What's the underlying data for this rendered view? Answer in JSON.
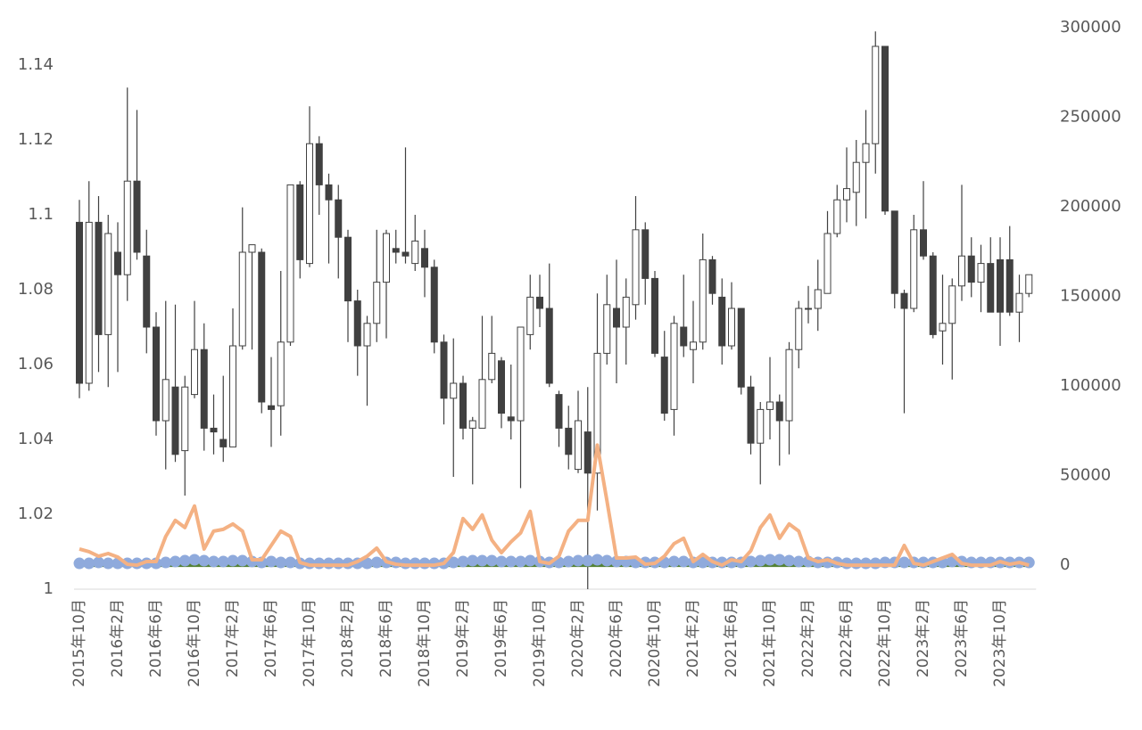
{
  "chart_data": {
    "type": "candlestick",
    "categories": [
      "2015年10月",
      null,
      null,
      null,
      "2016年2月",
      null,
      null,
      null,
      "2016年6月",
      null,
      null,
      null,
      "2016年10月",
      null,
      null,
      null,
      "2017年2月",
      null,
      null,
      null,
      "2017年6月",
      null,
      null,
      null,
      "2017年10月",
      null,
      null,
      null,
      "2018年2月",
      null,
      null,
      null,
      "2018年6月",
      null,
      null,
      null,
      "2018年10月",
      null,
      null,
      null,
      "2019年2月",
      null,
      null,
      null,
      "2019年6月",
      null,
      null,
      null,
      "2019年10月",
      null,
      null,
      null,
      "2020年2月",
      null,
      null,
      null,
      "2020年6月",
      null,
      null,
      null,
      "2020年10月",
      null,
      null,
      null,
      "2021年2月",
      null,
      null,
      null,
      "2021年6月",
      null,
      null,
      null,
      "2021年10月",
      null,
      null,
      null,
      "2022年2月",
      null,
      null,
      null,
      "2022年6月",
      null,
      null,
      null,
      "2022年10月",
      null,
      null,
      null,
      "2023年2月",
      null,
      null,
      null,
      "2023年6月",
      null,
      null,
      null,
      "2023年10月",
      null,
      null,
      null
    ],
    "open": [
      1.098,
      1.055,
      1.098,
      1.068,
      1.09,
      1.084,
      1.109,
      1.089,
      1.07,
      1.045,
      1.054,
      1.037,
      1.052,
      1.064,
      1.043,
      1.04,
      1.038,
      1.065,
      1.09,
      1.09,
      1.049,
      1.049,
      1.066,
      1.108,
      1.087,
      1.119,
      1.108,
      1.104,
      1.094,
      1.077,
      1.065,
      1.071,
      1.082,
      1.091,
      1.09,
      1.087,
      1.091,
      1.086,
      1.066,
      1.051,
      1.055,
      1.043,
      1.043,
      1.056,
      1.061,
      1.046,
      1.045,
      1.068,
      1.078,
      1.075,
      1.052,
      1.043,
      1.032,
      1.042,
      1.031,
      1.063,
      1.075,
      1.07,
      1.076,
      1.096,
      1.083,
      1.062,
      1.048,
      1.07,
      1.064,
      1.066,
      1.088,
      1.078,
      1.065,
      1.075,
      1.054,
      1.039,
      1.048,
      1.05,
      1.045,
      1.064,
      1.075,
      1.075,
      1.079,
      1.095,
      1.104,
      1.106,
      1.114,
      1.119,
      1.145,
      1.101,
      1.079,
      1.075,
      1.096,
      1.089,
      1.069,
      1.071,
      1.081,
      1.089,
      1.082,
      1.087,
      1.088,
      1.088,
      1.074,
      1.079
    ],
    "high": [
      1.104,
      1.109,
      1.105,
      1.1,
      1.098,
      1.134,
      1.128,
      1.096,
      1.074,
      1.077,
      1.076,
      1.057,
      1.077,
      1.071,
      1.052,
      1.057,
      1.075,
      1.102,
      1.092,
      1.091,
      1.062,
      1.085,
      1.108,
      1.109,
      1.129,
      1.121,
      1.111,
      1.108,
      1.096,
      1.08,
      1.073,
      1.096,
      1.096,
      1.096,
      1.118,
      1.1,
      1.096,
      1.088,
      1.068,
      1.067,
      1.057,
      1.046,
      1.073,
      1.073,
      1.062,
      1.06,
      1.07,
      1.084,
      1.084,
      1.087,
      1.053,
      1.049,
      1.053,
      1.054,
      1.079,
      1.084,
      1.088,
      1.083,
      1.105,
      1.098,
      1.085,
      1.069,
      1.073,
      1.084,
      1.077,
      1.095,
      1.089,
      1.083,
      1.082,
      1.075,
      1.057,
      1.05,
      1.062,
      1.052,
      1.066,
      1.077,
      1.081,
      1.088,
      1.101,
      1.108,
      1.118,
      1.12,
      1.128,
      1.149,
      1.145,
      1.101,
      1.08,
      1.1,
      1.109,
      1.09,
      1.084,
      1.083,
      1.108,
      1.094,
      1.092,
      1.094,
      1.094,
      1.097,
      1.084,
      1.084
    ],
    "low": [
      1.051,
      1.053,
      1.058,
      1.054,
      1.058,
      1.077,
      1.088,
      1.063,
      1.041,
      1.032,
      1.034,
      1.025,
      1.051,
      1.037,
      1.036,
      1.034,
      1.038,
      1.064,
      1.064,
      1.047,
      1.038,
      1.041,
      1.065,
      1.083,
      1.086,
      1.1,
      1.087,
      1.083,
      1.066,
      1.057,
      1.049,
      1.066,
      1.067,
      1.087,
      1.087,
      1.085,
      1.078,
      1.063,
      1.044,
      1.03,
      1.04,
      1.028,
      1.043,
      1.055,
      1.043,
      1.04,
      1.027,
      1.064,
      1.07,
      1.054,
      1.038,
      1.032,
      1.031,
      1.0,
      1.021,
      1.06,
      1.055,
      1.06,
      1.072,
      1.076,
      1.062,
      1.045,
      1.041,
      1.062,
      1.055,
      1.064,
      1.076,
      1.06,
      1.064,
      1.052,
      1.036,
      1.028,
      1.04,
      1.033,
      1.036,
      1.059,
      1.071,
      1.069,
      1.079,
      1.094,
      1.098,
      1.097,
      1.099,
      1.111,
      1.1,
      1.075,
      1.047,
      1.074,
      1.088,
      1.067,
      1.06,
      1.056,
      1.077,
      1.078,
      1.074,
      1.074,
      1.065,
      1.073,
      1.066,
      1.078
    ],
    "close": [
      1.055,
      1.098,
      1.068,
      1.095,
      1.084,
      1.109,
      1.09,
      1.07,
      1.045,
      1.056,
      1.036,
      1.054,
      1.064,
      1.043,
      1.042,
      1.038,
      1.065,
      1.09,
      1.092,
      1.05,
      1.048,
      1.066,
      1.108,
      1.088,
      1.119,
      1.108,
      1.104,
      1.094,
      1.077,
      1.065,
      1.071,
      1.082,
      1.095,
      1.09,
      1.089,
      1.093,
      1.086,
      1.066,
      1.051,
      1.055,
      1.043,
      1.045,
      1.056,
      1.063,
      1.047,
      1.045,
      1.07,
      1.078,
      1.075,
      1.055,
      1.043,
      1.036,
      1.045,
      1.031,
      1.063,
      1.076,
      1.07,
      1.078,
      1.096,
      1.083,
      1.063,
      1.047,
      1.071,
      1.065,
      1.066,
      1.088,
      1.079,
      1.065,
      1.075,
      1.054,
      1.039,
      1.048,
      1.05,
      1.045,
      1.064,
      1.075,
      1.075,
      1.08,
      1.095,
      1.104,
      1.107,
      1.114,
      1.119,
      1.145,
      1.101,
      1.079,
      1.075,
      1.096,
      1.089,
      1.068,
      1.071,
      1.081,
      1.089,
      1.082,
      1.087,
      1.074,
      1.074,
      1.074,
      1.079,
      1.084
    ],
    "up_color": "#ffffff",
    "down_color": "#404040",
    "wick_color": "#404040",
    "ylim": [
      1,
      1.15
    ],
    "yticks": [
      1,
      1.02,
      1.04,
      1.06,
      1.08,
      1.1,
      1.12,
      1.14
    ],
    "y2lim": [
      -13400,
      300000
    ],
    "y2ticks": [
      0,
      50000,
      100000,
      150000,
      200000,
      250000,
      300000
    ],
    "series": [
      {
        "type": "line",
        "axis": "y2",
        "color": "#548235",
        "values": [
          0,
          0,
          0,
          0,
          0,
          0,
          0,
          0,
          0,
          0,
          0,
          0,
          0,
          0,
          0,
          0,
          0,
          0,
          0,
          0,
          0,
          0,
          0,
          0,
          0,
          0,
          0,
          0,
          0,
          0,
          0,
          0,
          0,
          0,
          0,
          0,
          0,
          0,
          0,
          0,
          0,
          0,
          0,
          0,
          0,
          0,
          0,
          0,
          0,
          0,
          0,
          0,
          0,
          0,
          0,
          0,
          0,
          0,
          0,
          0,
          0,
          0,
          0,
          0,
          0,
          0,
          0,
          0,
          0,
          0,
          0,
          0,
          0,
          0,
          0,
          0,
          0,
          0,
          0,
          0,
          0,
          0,
          0,
          0,
          0,
          0,
          0,
          0,
          0,
          0,
          0,
          0,
          0,
          0,
          0,
          0,
          0,
          0,
          0,
          0
        ]
      },
      {
        "type": "scatter",
        "axis": "y2",
        "color": "#8faadc",
        "values": [
          1000,
          1000,
          1500,
          1000,
          1000,
          1000,
          1000,
          1000,
          1000,
          1500,
          2000,
          2500,
          3000,
          2500,
          2000,
          2000,
          2500,
          2500,
          2000,
          1500,
          2000,
          1500,
          1500,
          1000,
          1000,
          1000,
          1000,
          1000,
          1000,
          1000,
          1000,
          1500,
          1500,
          1500,
          1000,
          1000,
          1000,
          1000,
          1000,
          1500,
          2000,
          2500,
          2500,
          2500,
          2000,
          2000,
          2000,
          2500,
          2000,
          1500,
          1500,
          2000,
          2500,
          2500,
          3000,
          2500,
          2000,
          2000,
          1500,
          1500,
          1500,
          1500,
          2000,
          2000,
          1500,
          1500,
          1500,
          1500,
          1500,
          1500,
          2000,
          2500,
          3000,
          3000,
          2500,
          2000,
          2000,
          1500,
          1500,
          1500,
          1000,
          1000,
          1000,
          1000,
          1500,
          1500,
          1500,
          1500,
          1500,
          1500,
          1500,
          2000,
          2000,
          1500,
          1500,
          1500,
          1500,
          1500,
          1500,
          1500
        ]
      },
      {
        "type": "line",
        "axis": "y2",
        "color": "#f4b183",
        "values": [
          9000,
          7500,
          5000,
          6500,
          4500,
          500,
          0,
          2000,
          2000,
          16000,
          25000,
          21000,
          33000,
          9000,
          19000,
          20000,
          23000,
          19000,
          3000,
          3000,
          11000,
          19000,
          16000,
          1500,
          0,
          0,
          0,
          0,
          0,
          2000,
          5000,
          9500,
          2000,
          500,
          0,
          0,
          0,
          0,
          1000,
          7000,
          26000,
          20000,
          28000,
          14000,
          7000,
          13000,
          18000,
          30000,
          2000,
          1000,
          5000,
          19000,
          25000,
          25000,
          67000,
          36000,
          4000,
          4000,
          4500,
          500,
          1000,
          5000,
          12000,
          15000,
          2000,
          6000,
          2000,
          0,
          3000,
          2000,
          8000,
          21000,
          28000,
          15000,
          23000,
          19000,
          4000,
          2000,
          3000,
          1000,
          0,
          0,
          0,
          0,
          0,
          0,
          11000,
          1000,
          0,
          2000,
          4000,
          6000,
          1000,
          0,
          0,
          0,
          2000,
          500,
          1500,
          0
        ]
      }
    ]
  }
}
